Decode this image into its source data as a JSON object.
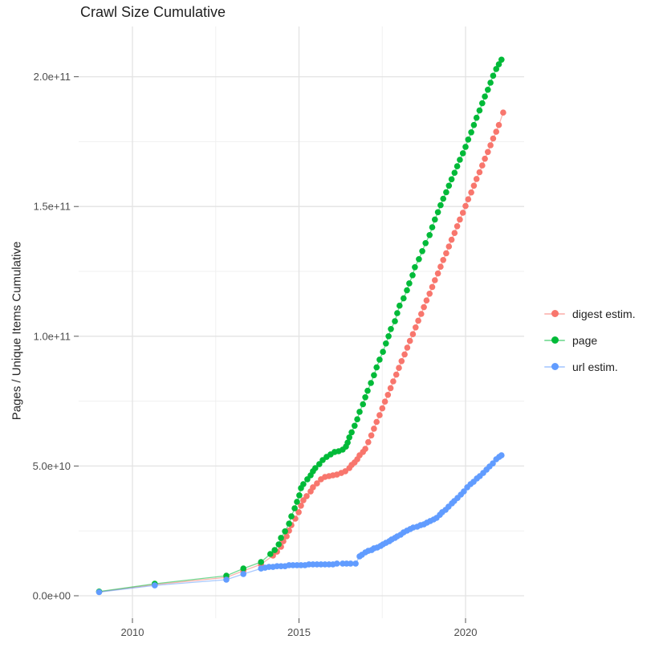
{
  "title": "Crawl Size Cumulative",
  "axes": {
    "y_label": "Pages / Unique Items Cumulative",
    "x_label": "",
    "y_tick_labels": [
      "0.0e+00",
      "5.0e+10",
      "1.0e+11",
      "1.5e+11",
      "2.0e+11"
    ],
    "x_tick_labels": [
      "2010",
      "2015",
      "2020"
    ]
  },
  "legend": {
    "items": [
      {
        "label": "digest estim.",
        "color": "#F8766D"
      },
      {
        "label": "page",
        "color": "#00BA38"
      },
      {
        "label": "url estim.",
        "color": "#619CFF"
      }
    ]
  },
  "colors": {
    "grid_major": "#E3E3E3",
    "grid_minor": "#F0F0F0",
    "tick_mark": "#555555",
    "tick_label": "#4d4d4d"
  },
  "chart_data": {
    "type": "scatter",
    "title": "Crawl Size Cumulative",
    "xlabel": "",
    "ylabel": "Pages / Unique Items Cumulative",
    "x_unit": "year (decimal)",
    "y_unit": "items, in billions (1e9); axis shown in scientific notation",
    "xlim": [
      2008.5,
      2021.8
    ],
    "ylim": [
      0,
      210
    ],
    "grid": true,
    "legend_position": "right",
    "x_ticks_major": [
      2010,
      2015,
      2020
    ],
    "x_ticks_minor": [
      2012.5,
      2017.5
    ],
    "y_ticks_major": [
      0,
      50,
      100,
      150,
      200
    ],
    "y_ticks_minor": [
      25,
      75,
      125,
      175
    ],
    "y_tick_labels": [
      "0.0e+00",
      "5.0e+10",
      "1.0e+11",
      "1.5e+11",
      "2.0e+11"
    ],
    "series": [
      {
        "name": "digest estim.",
        "color": "#F8766D",
        "x": [
          2009.0,
          2010.67,
          2012.82,
          2013.33,
          2013.86,
          2014.22,
          2014.34,
          2014.46,
          2014.53,
          2014.63,
          2014.7,
          2014.77,
          2014.89,
          2014.99,
          2015.06,
          2015.13,
          2015.23,
          2015.35,
          2015.42,
          2015.54,
          2015.66,
          2015.78,
          2015.9,
          2016.02,
          2016.14,
          2016.27,
          2016.39,
          2016.51,
          2016.58,
          2016.67,
          2016.75,
          2016.82,
          2016.92,
          2016.99,
          2017.08,
          2017.17,
          2017.25,
          2017.33,
          2017.42,
          2017.5,
          2017.58,
          2017.67,
          2017.75,
          2017.83,
          2017.92,
          2018.0,
          2018.08,
          2018.17,
          2018.25,
          2018.33,
          2018.42,
          2018.5,
          2018.58,
          2018.67,
          2018.75,
          2018.83,
          2018.92,
          2019.0,
          2019.08,
          2019.17,
          2019.25,
          2019.33,
          2019.42,
          2019.5,
          2019.58,
          2019.67,
          2019.75,
          2019.83,
          2019.92,
          2020.0,
          2020.08,
          2020.17,
          2020.25,
          2020.33,
          2020.42,
          2020.5,
          2020.58,
          2020.67,
          2020.75,
          2020.83,
          2020.92,
          2021.0,
          2021.13
        ],
        "y": [
          1.5,
          4.3,
          7.1,
          9.6,
          12.1,
          15.5,
          17.0,
          18.9,
          21.0,
          22.9,
          25.1,
          27.2,
          29.7,
          32.2,
          34.7,
          36.8,
          38.4,
          40.2,
          41.8,
          43.3,
          44.9,
          45.8,
          46.1,
          46.4,
          46.7,
          47.3,
          48.0,
          49.2,
          50.4,
          51.4,
          52.6,
          54.1,
          55.4,
          56.6,
          59.2,
          61.8,
          64.4,
          67.0,
          69.6,
          72.2,
          74.8,
          77.4,
          80.0,
          82.6,
          85.2,
          87.8,
          90.4,
          93.0,
          95.6,
          98.2,
          100.8,
          103.4,
          106.0,
          108.6,
          111.2,
          113.8,
          116.4,
          119.0,
          121.6,
          124.2,
          126.8,
          129.4,
          132.0,
          134.6,
          137.2,
          139.8,
          142.4,
          145.0,
          147.6,
          150.2,
          152.8,
          155.4,
          158.0,
          160.6,
          163.2,
          165.8,
          168.4,
          171.0,
          173.6,
          176.2,
          178.8,
          181.4,
          186.2
        ]
      },
      {
        "name": "page",
        "color": "#00BA38",
        "x": [
          2009.0,
          2010.67,
          2012.82,
          2013.33,
          2013.86,
          2014.14,
          2014.27,
          2014.39,
          2014.46,
          2014.58,
          2014.7,
          2014.77,
          2014.87,
          2014.94,
          2015.01,
          2015.06,
          2015.13,
          2015.25,
          2015.35,
          2015.42,
          2015.49,
          2015.61,
          2015.71,
          2015.83,
          2015.95,
          2016.07,
          2016.19,
          2016.31,
          2016.41,
          2016.46,
          2016.51,
          2016.58,
          2016.67,
          2016.75,
          2016.82,
          2016.92,
          2016.99,
          2017.06,
          2017.16,
          2017.25,
          2017.33,
          2017.42,
          2017.52,
          2017.61,
          2017.69,
          2017.76,
          2017.88,
          2017.95,
          2018.02,
          2018.14,
          2018.24,
          2018.31,
          2018.41,
          2018.48,
          2018.6,
          2018.7,
          2018.8,
          2018.92,
          2019.0,
          2019.08,
          2019.17,
          2019.25,
          2019.33,
          2019.42,
          2019.5,
          2019.58,
          2019.67,
          2019.75,
          2019.83,
          2019.92,
          2020.0,
          2020.08,
          2020.17,
          2020.25,
          2020.33,
          2020.42,
          2020.5,
          2020.58,
          2020.67,
          2020.75,
          2020.83,
          2020.92,
          2021.0,
          2021.08
        ],
        "y": [
          1.6,
          4.6,
          7.7,
          10.5,
          13.0,
          16.1,
          17.6,
          19.8,
          22.3,
          24.8,
          27.8,
          30.6,
          33.7,
          36.2,
          38.7,
          41.5,
          43.0,
          44.9,
          46.4,
          48.0,
          49.2,
          50.7,
          52.3,
          53.5,
          54.5,
          55.4,
          55.7,
          56.3,
          57.5,
          59.0,
          61.0,
          63.0,
          65.5,
          68.0,
          70.9,
          73.8,
          76.5,
          79.0,
          82.0,
          85.0,
          88.0,
          91.0,
          94.0,
          97.2,
          100.0,
          102.8,
          105.8,
          108.9,
          111.8,
          114.6,
          117.7,
          120.4,
          123.5,
          126.6,
          129.7,
          132.8,
          135.9,
          139.0,
          142.0,
          145.0,
          147.8,
          150.5,
          153.0,
          155.5,
          158.0,
          160.5,
          163.0,
          165.5,
          168.0,
          170.5,
          173.0,
          175.8,
          178.6,
          181.4,
          184.2,
          187.0,
          189.8,
          192.4,
          195.0,
          197.7,
          200.4,
          203.0,
          204.8,
          206.6
        ]
      },
      {
        "name": "url estim.",
        "color": "#619CFF",
        "x": [
          2009.0,
          2010.67,
          2012.82,
          2013.33,
          2013.86,
          2013.98,
          2014.1,
          2014.22,
          2014.34,
          2014.46,
          2014.58,
          2014.7,
          2014.82,
          2014.94,
          2015.06,
          2015.18,
          2015.3,
          2015.42,
          2015.54,
          2015.66,
          2015.78,
          2015.9,
          2016.02,
          2016.14,
          2016.31,
          2016.43,
          2016.55,
          2016.7,
          2016.82,
          2016.89,
          2016.99,
          2017.08,
          2017.18,
          2017.25,
          2017.35,
          2017.45,
          2017.52,
          2017.61,
          2017.71,
          2017.78,
          2017.88,
          2017.95,
          2018.05,
          2018.14,
          2018.24,
          2018.34,
          2018.43,
          2018.55,
          2018.65,
          2018.75,
          2018.84,
          2018.94,
          2019.04,
          2019.13,
          2019.23,
          2019.3,
          2019.4,
          2019.49,
          2019.59,
          2019.66,
          2019.76,
          2019.86,
          2019.95,
          2020.05,
          2020.15,
          2020.24,
          2020.34,
          2020.43,
          2020.53,
          2020.63,
          2020.72,
          2020.82,
          2020.92,
          2021.01,
          2021.08
        ],
        "y": [
          1.4,
          4.0,
          6.2,
          8.4,
          10.5,
          10.8,
          11.1,
          11.1,
          11.4,
          11.4,
          11.4,
          11.8,
          11.8,
          11.8,
          11.8,
          11.8,
          12.1,
          12.1,
          12.1,
          12.1,
          12.1,
          12.1,
          12.1,
          12.4,
          12.4,
          12.4,
          12.4,
          12.4,
          15.2,
          15.8,
          16.7,
          17.3,
          17.6,
          18.3,
          18.6,
          19.2,
          19.8,
          20.4,
          21.0,
          21.7,
          22.3,
          22.9,
          23.5,
          24.4,
          25.1,
          25.7,
          26.3,
          26.6,
          27.2,
          27.5,
          28.2,
          28.8,
          29.4,
          30.0,
          31.2,
          32.2,
          33.1,
          34.3,
          35.6,
          36.5,
          37.7,
          39.0,
          40.2,
          41.8,
          43.0,
          43.9,
          45.2,
          46.1,
          47.3,
          48.6,
          49.8,
          51.0,
          52.6,
          53.5,
          54.1
        ]
      }
    ]
  }
}
